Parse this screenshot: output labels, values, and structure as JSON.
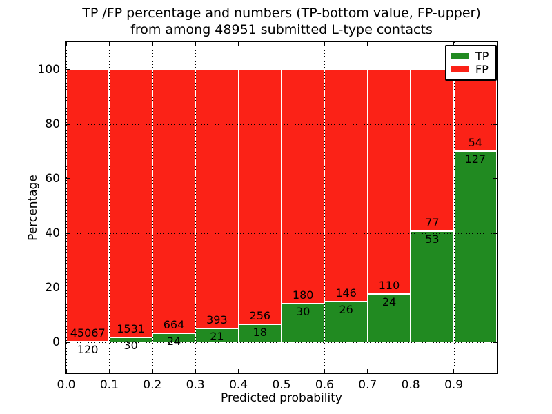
{
  "chart_data": {
    "type": "bar",
    "stacked": true,
    "title_line1": "TP /FP percentage and numbers (TP-bottom value, FP-upper)",
    "title_line2": "from among 48951 submitted L-type contacts",
    "total_submitted_contacts": 48951,
    "xlabel": "Predicted probability",
    "ylabel": "Percentage",
    "xlim": [
      0.0,
      1.0
    ],
    "ylim": [
      -11,
      110
    ],
    "xticks": [
      "0.0",
      "0.1",
      "0.2",
      "0.3",
      "0.4",
      "0.5",
      "0.6",
      "0.7",
      "0.8",
      "0.9"
    ],
    "yticks": [
      "0",
      "20",
      "40",
      "60",
      "80",
      "100"
    ],
    "grid": "dotted-black-on-top",
    "bin_width": 0.1,
    "categories": [
      "0.0-0.1",
      "0.1-0.2",
      "0.2-0.3",
      "0.3-0.4",
      "0.4-0.5",
      "0.5-0.6",
      "0.6-0.7",
      "0.7-0.8",
      "0.8-0.9",
      "0.9-1.0"
    ],
    "series": [
      {
        "name": "TP",
        "position": "bottom",
        "counts": [
          120,
          30,
          24,
          21,
          18,
          30,
          26,
          24,
          53,
          127
        ]
      },
      {
        "name": "FP",
        "position": "upper",
        "counts": [
          45067,
          1531,
          664,
          393,
          256,
          180,
          146,
          110,
          77,
          54
        ]
      }
    ],
    "bars_sum_to_percent": 100,
    "legend": {
      "position": "upper-right",
      "entries": [
        {
          "label": "TP",
          "color": "#218a21"
        },
        {
          "label": "FP",
          "color": "#fb2217"
        }
      ]
    },
    "colors": {
      "tp_green": "#218a21",
      "fp_red": "#fb2217",
      "bar_edge": "#ffffff",
      "grid": "#000000",
      "text": "#000000",
      "background": "#ffffff"
    }
  }
}
